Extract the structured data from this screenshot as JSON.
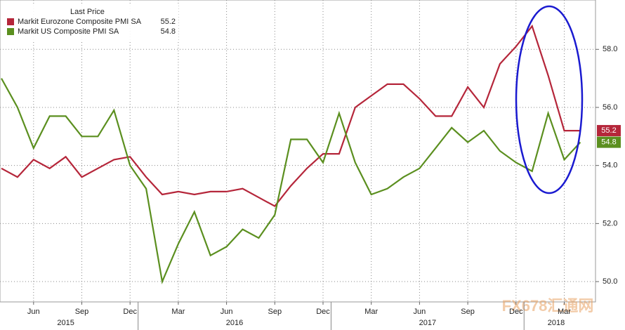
{
  "chart_data": {
    "type": "line",
    "legend_title": "Last Price",
    "categories": [
      null,
      null,
      "Jun",
      null,
      null,
      "Sep",
      null,
      null,
      "Dec",
      null,
      null,
      "Mar",
      null,
      null,
      "Jun",
      null,
      null,
      "Sep",
      null,
      null,
      "Dec",
      null,
      null,
      "Mar",
      null,
      null,
      "Jun",
      null,
      null,
      "Sep",
      null,
      null,
      "Dec",
      null,
      null,
      "Mar",
      null
    ],
    "years": [
      "2015",
      "2016",
      "2017",
      "2018"
    ],
    "series": [
      {
        "name": "Markit Eurozone Composite PMI SA",
        "color": "#b5263a",
        "values": [
          53.9,
          53.6,
          54.2,
          53.9,
          54.3,
          53.6,
          53.9,
          54.2,
          54.3,
          53.6,
          53.0,
          53.1,
          53.0,
          53.1,
          53.1,
          53.2,
          52.9,
          52.6,
          53.3,
          53.9,
          54.4,
          54.4,
          56.0,
          56.4,
          56.8,
          56.8,
          56.3,
          55.7,
          55.7,
          56.7,
          56.0,
          57.5,
          58.1,
          58.8,
          57.1,
          55.2,
          55.2
        ]
      },
      {
        "name": "Markit US Composite PMI SA",
        "color": "#5b8f1f",
        "values": [
          57.0,
          56.0,
          54.6,
          55.7,
          55.7,
          55.0,
          55.0,
          55.9,
          54.0,
          53.2,
          50.0,
          51.3,
          52.4,
          50.9,
          51.2,
          51.8,
          51.5,
          52.3,
          54.9,
          54.9,
          54.1,
          55.8,
          54.1,
          53.0,
          53.2,
          53.6,
          53.9,
          54.6,
          55.3,
          54.8,
          55.2,
          54.5,
          54.1,
          53.8,
          55.8,
          54.2,
          54.8
        ]
      }
    ],
    "ylim": [
      49.3,
      59.7
    ],
    "yticks": [
      {
        "value": 50,
        "label": "50.0"
      },
      {
        "value": 52,
        "label": "52.0"
      },
      {
        "value": 54,
        "label": "54.0"
      },
      {
        "value": 56,
        "label": "56.0"
      },
      {
        "value": 58,
        "label": "58.0"
      }
    ],
    "grid": true,
    "watermark": "FX678汇通网"
  }
}
